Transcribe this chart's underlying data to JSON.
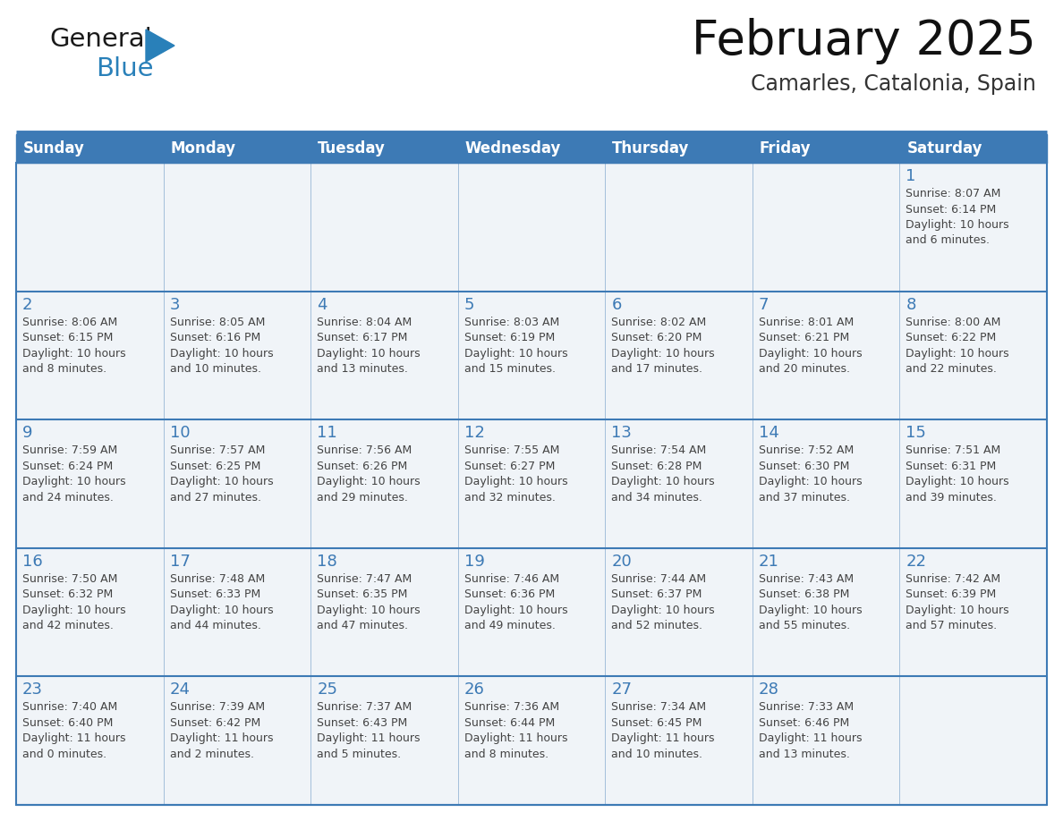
{
  "title": "February 2025",
  "subtitle": "Camarles, Catalonia, Spain",
  "header_bg_color": "#3d7ab5",
  "header_text_color": "#ffffff",
  "cell_bg_color": "#f0f4f8",
  "border_color": "#3d7ab5",
  "row_divider_color": "#3d7ab5",
  "day_number_color": "#3d7ab5",
  "info_text_color": "#444444",
  "days_of_week": [
    "Sunday",
    "Monday",
    "Tuesday",
    "Wednesday",
    "Thursday",
    "Friday",
    "Saturday"
  ],
  "weeks": [
    [
      {
        "day": null,
        "info": null
      },
      {
        "day": null,
        "info": null
      },
      {
        "day": null,
        "info": null
      },
      {
        "day": null,
        "info": null
      },
      {
        "day": null,
        "info": null
      },
      {
        "day": null,
        "info": null
      },
      {
        "day": "1",
        "info": "Sunrise: 8:07 AM\nSunset: 6:14 PM\nDaylight: 10 hours\nand 6 minutes."
      }
    ],
    [
      {
        "day": "2",
        "info": "Sunrise: 8:06 AM\nSunset: 6:15 PM\nDaylight: 10 hours\nand 8 minutes."
      },
      {
        "day": "3",
        "info": "Sunrise: 8:05 AM\nSunset: 6:16 PM\nDaylight: 10 hours\nand 10 minutes."
      },
      {
        "day": "4",
        "info": "Sunrise: 8:04 AM\nSunset: 6:17 PM\nDaylight: 10 hours\nand 13 minutes."
      },
      {
        "day": "5",
        "info": "Sunrise: 8:03 AM\nSunset: 6:19 PM\nDaylight: 10 hours\nand 15 minutes."
      },
      {
        "day": "6",
        "info": "Sunrise: 8:02 AM\nSunset: 6:20 PM\nDaylight: 10 hours\nand 17 minutes."
      },
      {
        "day": "7",
        "info": "Sunrise: 8:01 AM\nSunset: 6:21 PM\nDaylight: 10 hours\nand 20 minutes."
      },
      {
        "day": "8",
        "info": "Sunrise: 8:00 AM\nSunset: 6:22 PM\nDaylight: 10 hours\nand 22 minutes."
      }
    ],
    [
      {
        "day": "9",
        "info": "Sunrise: 7:59 AM\nSunset: 6:24 PM\nDaylight: 10 hours\nand 24 minutes."
      },
      {
        "day": "10",
        "info": "Sunrise: 7:57 AM\nSunset: 6:25 PM\nDaylight: 10 hours\nand 27 minutes."
      },
      {
        "day": "11",
        "info": "Sunrise: 7:56 AM\nSunset: 6:26 PM\nDaylight: 10 hours\nand 29 minutes."
      },
      {
        "day": "12",
        "info": "Sunrise: 7:55 AM\nSunset: 6:27 PM\nDaylight: 10 hours\nand 32 minutes."
      },
      {
        "day": "13",
        "info": "Sunrise: 7:54 AM\nSunset: 6:28 PM\nDaylight: 10 hours\nand 34 minutes."
      },
      {
        "day": "14",
        "info": "Sunrise: 7:52 AM\nSunset: 6:30 PM\nDaylight: 10 hours\nand 37 minutes."
      },
      {
        "day": "15",
        "info": "Sunrise: 7:51 AM\nSunset: 6:31 PM\nDaylight: 10 hours\nand 39 minutes."
      }
    ],
    [
      {
        "day": "16",
        "info": "Sunrise: 7:50 AM\nSunset: 6:32 PM\nDaylight: 10 hours\nand 42 minutes."
      },
      {
        "day": "17",
        "info": "Sunrise: 7:48 AM\nSunset: 6:33 PM\nDaylight: 10 hours\nand 44 minutes."
      },
      {
        "day": "18",
        "info": "Sunrise: 7:47 AM\nSunset: 6:35 PM\nDaylight: 10 hours\nand 47 minutes."
      },
      {
        "day": "19",
        "info": "Sunrise: 7:46 AM\nSunset: 6:36 PM\nDaylight: 10 hours\nand 49 minutes."
      },
      {
        "day": "20",
        "info": "Sunrise: 7:44 AM\nSunset: 6:37 PM\nDaylight: 10 hours\nand 52 minutes."
      },
      {
        "day": "21",
        "info": "Sunrise: 7:43 AM\nSunset: 6:38 PM\nDaylight: 10 hours\nand 55 minutes."
      },
      {
        "day": "22",
        "info": "Sunrise: 7:42 AM\nSunset: 6:39 PM\nDaylight: 10 hours\nand 57 minutes."
      }
    ],
    [
      {
        "day": "23",
        "info": "Sunrise: 7:40 AM\nSunset: 6:40 PM\nDaylight: 11 hours\nand 0 minutes."
      },
      {
        "day": "24",
        "info": "Sunrise: 7:39 AM\nSunset: 6:42 PM\nDaylight: 11 hours\nand 2 minutes."
      },
      {
        "day": "25",
        "info": "Sunrise: 7:37 AM\nSunset: 6:43 PM\nDaylight: 11 hours\nand 5 minutes."
      },
      {
        "day": "26",
        "info": "Sunrise: 7:36 AM\nSunset: 6:44 PM\nDaylight: 11 hours\nand 8 minutes."
      },
      {
        "day": "27",
        "info": "Sunrise: 7:34 AM\nSunset: 6:45 PM\nDaylight: 11 hours\nand 10 minutes."
      },
      {
        "day": "28",
        "info": "Sunrise: 7:33 AM\nSunset: 6:46 PM\nDaylight: 11 hours\nand 13 minutes."
      },
      {
        "day": null,
        "info": null
      }
    ]
  ],
  "logo_color_general": "#1a1a1a",
  "logo_color_blue": "#2980b9",
  "logo_triangle_color": "#2980b9",
  "title_fontsize": 38,
  "subtitle_fontsize": 17,
  "header_fontsize": 12,
  "day_num_fontsize": 13,
  "info_fontsize": 9
}
